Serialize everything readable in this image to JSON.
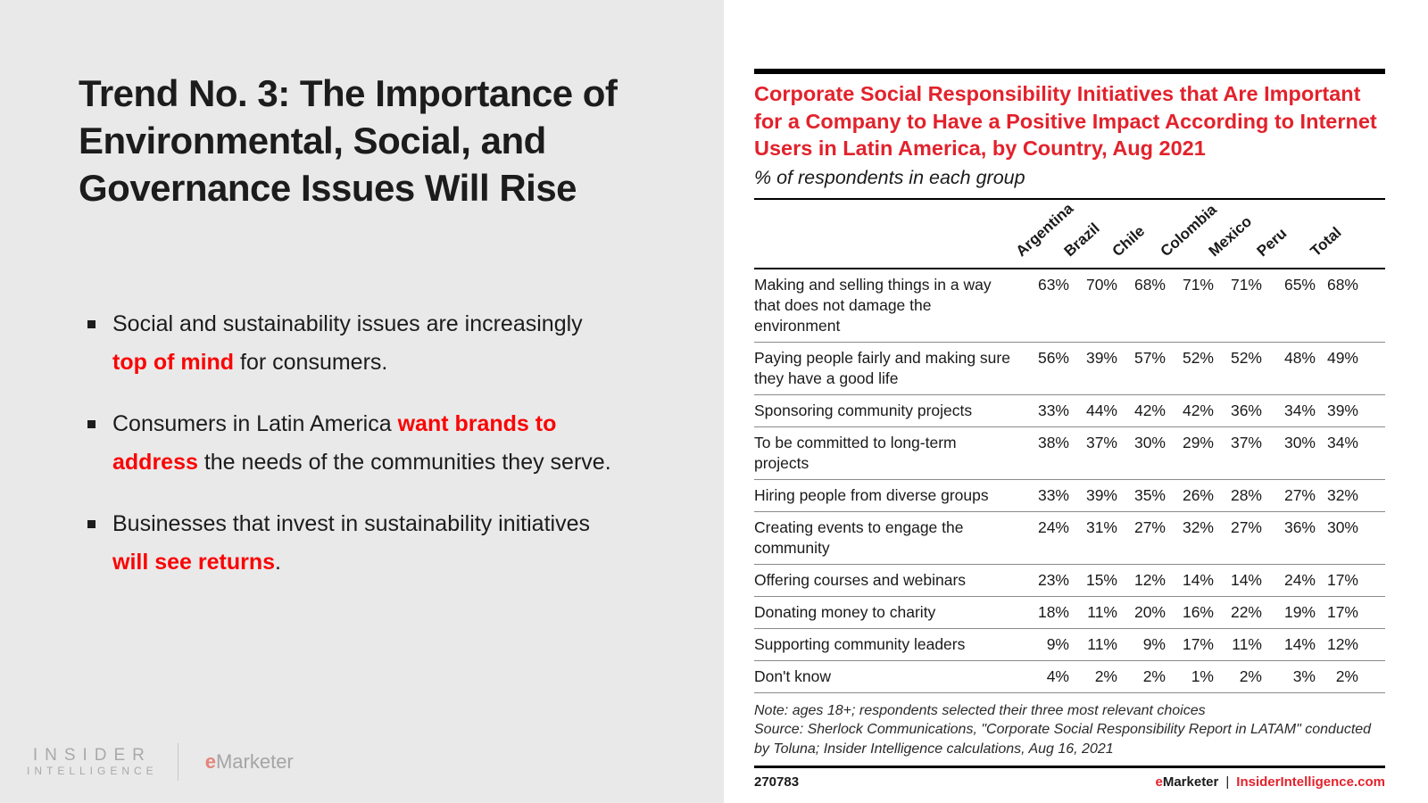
{
  "colors": {
    "panel_gray": "#e9e9e9",
    "chart_red": "#e2222c",
    "highlight_red": "#fa0505",
    "text_dark": "#1c1c1c",
    "logo_gray": "#a9a9a9",
    "logo_e_pink": "#e4847d"
  },
  "slide": {
    "title": "Trend No. 3: The Importance of Environmental, Social, and Governance Issues Will Rise",
    "bullets": [
      {
        "pre": "Social and sustainability issues are increasingly ",
        "highlight": "top of mind",
        "post": " for consumers."
      },
      {
        "pre": "Consumers in Latin America ",
        "highlight": "want brands to address",
        "post": " the needs of the communities they serve."
      },
      {
        "pre": "Businesses that invest in sustainability initiatives ",
        "highlight": "will see returns",
        "post": "."
      }
    ]
  },
  "brand": {
    "insider_line1": "INSIDER",
    "insider_line2": "INTELLIGENCE",
    "emarketer_e": "e",
    "emarketer_rest": "Marketer"
  },
  "chart_data": {
    "type": "table",
    "title": "Corporate Social Responsibility Initiatives that Are Important for a Company to Have a Positive Impact According to Internet Users in Latin America, by Country, Aug 2021",
    "subtitle": "% of respondents in each group",
    "columns": [
      "Argentina",
      "Brazil",
      "Chile",
      "Colombia",
      "Mexico",
      "Peru",
      "Total"
    ],
    "rows": [
      {
        "label": "Making and selling things in a way that does not damage the environment",
        "values": [
          "63%",
          "70%",
          "68%",
          "71%",
          "71%",
          "65%",
          "68%"
        ]
      },
      {
        "label": "Paying people fairly and making sure they have a good life",
        "values": [
          "56%",
          "39%",
          "57%",
          "52%",
          "52%",
          "48%",
          "49%"
        ]
      },
      {
        "label": "Sponsoring community projects",
        "values": [
          "33%",
          "44%",
          "42%",
          "42%",
          "36%",
          "34%",
          "39%"
        ]
      },
      {
        "label": "To be committed to long-term projects",
        "values": [
          "38%",
          "37%",
          "30%",
          "29%",
          "37%",
          "30%",
          "34%"
        ]
      },
      {
        "label": "Hiring people from diverse groups",
        "values": [
          "33%",
          "39%",
          "35%",
          "26%",
          "28%",
          "27%",
          "32%"
        ]
      },
      {
        "label": "Creating events to engage the community",
        "values": [
          "24%",
          "31%",
          "27%",
          "32%",
          "27%",
          "36%",
          "30%"
        ]
      },
      {
        "label": "Offering courses and webinars",
        "values": [
          "23%",
          "15%",
          "12%",
          "14%",
          "14%",
          "24%",
          "17%"
        ]
      },
      {
        "label": "Donating money to charity",
        "values": [
          "18%",
          "11%",
          "20%",
          "16%",
          "22%",
          "19%",
          "17%"
        ]
      },
      {
        "label": "Supporting community leaders",
        "values": [
          "9%",
          "11%",
          "9%",
          "17%",
          "11%",
          "14%",
          "12%"
        ]
      },
      {
        "label": "Don't know",
        "values": [
          "4%",
          "2%",
          "2%",
          "1%",
          "2%",
          "3%",
          "2%"
        ]
      }
    ],
    "note": "Note: ages 18+; respondents selected their three most relevant choices",
    "source": "Source: Sherlock Communications, \"Corporate Social Responsibility Report in LATAM\" conducted by Toluna; Insider Intelligence calculations, Aug 16, 2021",
    "chart_id": "270783",
    "footer_brand_e": "e",
    "footer_brand_rest": "Marketer",
    "footer_separator": "|",
    "footer_site": "InsiderIntelligence.com"
  }
}
